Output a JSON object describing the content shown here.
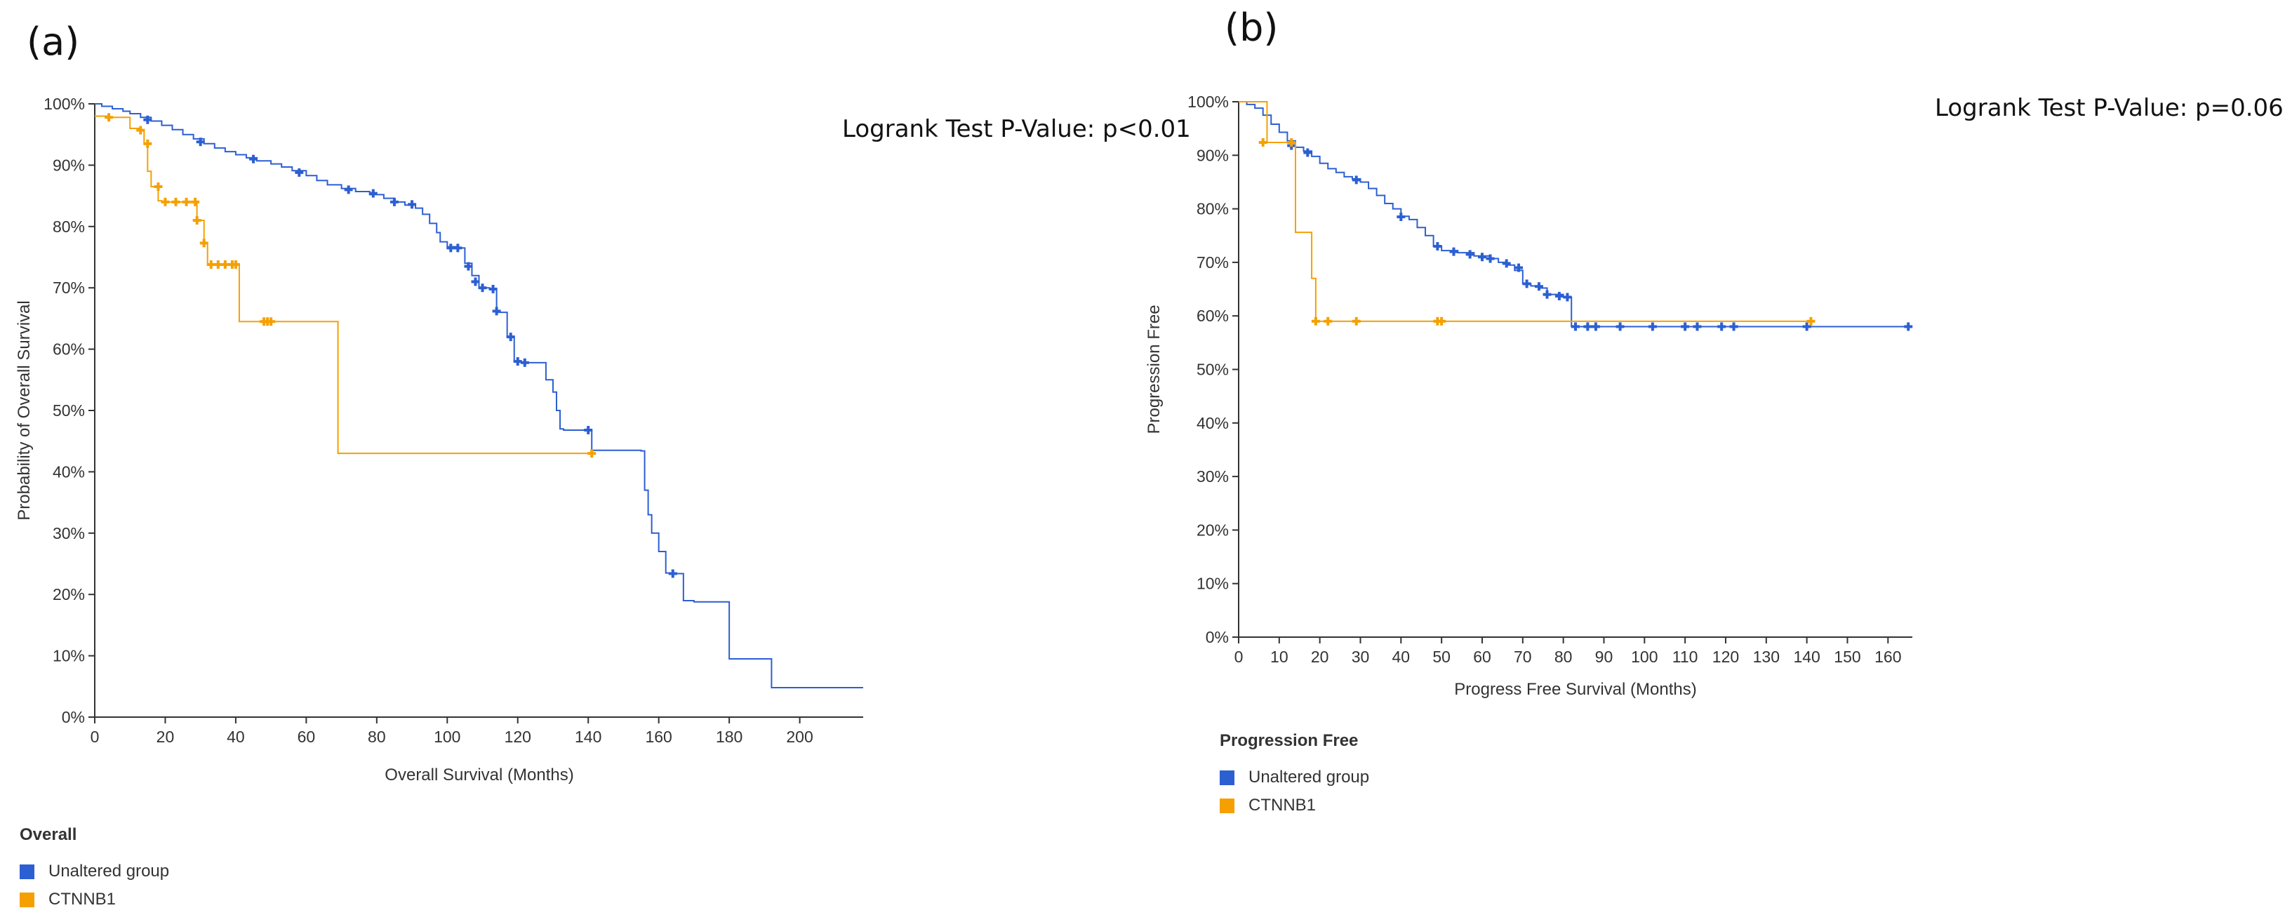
{
  "panels": {
    "a": {
      "label": "(a)",
      "logrank": "Logrank Test P-Value: p<0.01",
      "legend_title": "Overall",
      "legend": [
        "Unaltered group",
        "CTNNB1"
      ]
    },
    "b": {
      "label": "(b)",
      "logrank": "Logrank Test P-Value: p=0.06",
      "legend_title": "Progression Free",
      "legend": [
        "Unaltered group",
        "CTNNB1"
      ]
    }
  },
  "colors": {
    "unaltered": "#2c5fd2",
    "ctnnb1": "#f5a000",
    "axis": "#333333"
  },
  "chart_data": [
    {
      "type": "line",
      "title": "",
      "xlabel": "Overall Survival (Months)",
      "ylabel": "Probability of Overall Survival",
      "xlim": [
        0,
        218
      ],
      "ylim": [
        0,
        100
      ],
      "xticks": [
        0,
        20,
        40,
        60,
        80,
        100,
        120,
        140,
        160,
        180,
        200
      ],
      "yticks": [
        0,
        10,
        20,
        30,
        40,
        50,
        60,
        70,
        80,
        90,
        100
      ],
      "ytick_labels": [
        "0%",
        "10%",
        "20%",
        "30%",
        "40%",
        "50%",
        "60%",
        "70%",
        "80%",
        "90%",
        "100%"
      ],
      "series": [
        {
          "name": "Unaltered group",
          "x": [
            0,
            2,
            5,
            8,
            10,
            13,
            16,
            19,
            22,
            25,
            28,
            31,
            34,
            37,
            40,
            43,
            46,
            50,
            53,
            56,
            60,
            63,
            66,
            70,
            74,
            78,
            82,
            85,
            88,
            91,
            93,
            95,
            97,
            98,
            100,
            103,
            105,
            107,
            109,
            112,
            114,
            117,
            119,
            121,
            123,
            128,
            130,
            131,
            132,
            133,
            141,
            155,
            156,
            157,
            158,
            160,
            162,
            165,
            167,
            170,
            180,
            192,
            218
          ],
          "y": [
            100,
            99.6,
            99.2,
            98.8,
            98.4,
            97.8,
            97.2,
            96.5,
            95.8,
            95,
            94.3,
            93.5,
            92.8,
            92.2,
            91.7,
            91.2,
            90.7,
            90.2,
            89.7,
            89.1,
            88.3,
            87.5,
            86.8,
            86.2,
            85.7,
            85.2,
            84.6,
            84,
            83.5,
            83,
            82,
            80.5,
            79,
            77.5,
            76.7,
            76.5,
            74,
            72,
            70,
            69.8,
            66,
            62,
            58,
            57.9,
            57.8,
            55,
            53,
            50,
            47,
            46.8,
            43.5,
            43.4,
            37,
            33,
            30,
            27,
            23.5,
            23.4,
            19,
            18.8,
            9.5,
            4.8,
            4.8
          ],
          "censored_x": [
            15,
            30,
            45,
            58,
            72,
            79,
            85,
            90,
            101,
            103,
            106,
            108,
            110,
            113,
            114,
            118,
            120,
            122,
            140,
            164
          ],
          "censored_y": [
            97.4,
            93.8,
            91,
            88.8,
            86,
            85.4,
            84,
            83.6,
            76.5,
            76.5,
            73.5,
            71,
            70,
            69.8,
            66.2,
            62,
            58,
            57.8,
            46.8,
            23.4
          ]
        },
        {
          "name": "CTNNB1",
          "x": [
            0,
            4,
            10,
            13,
            14,
            15,
            16,
            18,
            19,
            28,
            29,
            31,
            32,
            39,
            41,
            68,
            69,
            141
          ],
          "y": [
            98,
            97.8,
            96,
            95.7,
            93.5,
            89,
            86.5,
            84.2,
            84,
            84,
            81,
            77.3,
            73.8,
            73.8,
            64.5,
            64.5,
            43,
            43
          ],
          "censored_x": [
            4,
            13,
            15,
            18,
            20,
            23,
            26,
            28.5,
            29,
            31,
            33,
            35,
            37,
            39,
            40,
            48,
            49,
            50,
            141
          ],
          "censored_y": [
            97.8,
            95.7,
            93.5,
            86.5,
            84,
            84,
            84,
            84,
            81,
            77.3,
            73.8,
            73.8,
            73.8,
            73.8,
            73.8,
            64.5,
            64.5,
            64.5,
            43
          ]
        }
      ]
    },
    {
      "type": "line",
      "title": "",
      "xlabel": "Progress Free Survival (Months)",
      "ylabel": "Progression Free",
      "xlim": [
        0,
        166
      ],
      "ylim": [
        0,
        100
      ],
      "xticks": [
        0,
        10,
        20,
        30,
        40,
        50,
        60,
        70,
        80,
        90,
        100,
        110,
        120,
        130,
        140,
        150,
        160
      ],
      "yticks": [
        0,
        10,
        20,
        30,
        40,
        50,
        60,
        70,
        80,
        90,
        100
      ],
      "ytick_labels": [
        "0%",
        "10%",
        "20%",
        "30%",
        "40%",
        "50%",
        "60%",
        "70%",
        "80%",
        "90%",
        "100%"
      ],
      "series": [
        {
          "name": "Unaltered group",
          "x": [
            0,
            2,
            4,
            6,
            8,
            10,
            12,
            14,
            16,
            18,
            20,
            22,
            24,
            26,
            28,
            30,
            32,
            34,
            36,
            38,
            40,
            42,
            44,
            46,
            48,
            50,
            54,
            58,
            62,
            64,
            66,
            68,
            70,
            72,
            74,
            76,
            80,
            82,
            166
          ],
          "y": [
            100,
            99.5,
            98.8,
            97.5,
            95.8,
            94.3,
            92.7,
            91.5,
            90.8,
            89.8,
            88.5,
            87.5,
            86.8,
            86,
            85.6,
            85,
            83.8,
            82.5,
            81,
            80,
            78.6,
            78,
            76.5,
            75,
            73,
            72.2,
            71.8,
            71.2,
            70.7,
            70,
            69.5,
            68.5,
            66,
            65.6,
            65.2,
            64,
            63.5,
            58,
            58
          ],
          "censored_x": [
            13,
            17,
            29,
            40,
            49,
            53,
            57,
            60,
            62,
            66,
            69,
            71,
            74,
            76,
            79,
            81,
            83,
            86,
            88,
            94,
            102,
            110,
            113,
            119,
            122,
            140,
            165
          ],
          "censored_y": [
            91.8,
            90.5,
            85.4,
            78.5,
            73,
            72,
            71.5,
            71,
            70.7,
            69.8,
            69,
            66,
            65.5,
            64,
            63.7,
            63.5,
            58,
            58,
            58,
            58,
            58,
            58,
            58,
            58,
            58,
            58,
            58
          ]
        },
        {
          "name": "CTNNB1",
          "x": [
            0,
            6,
            7,
            13,
            14,
            17,
            18,
            19,
            141
          ],
          "y": [
            100,
            100,
            92.4,
            92.4,
            75.6,
            75.6,
            67,
            59,
            59
          ],
          "censored_x": [
            6,
            13,
            19,
            22,
            29,
            49,
            50,
            141
          ],
          "censored_y": [
            92.4,
            92.4,
            59,
            59,
            59,
            59,
            59,
            59
          ]
        }
      ]
    }
  ]
}
